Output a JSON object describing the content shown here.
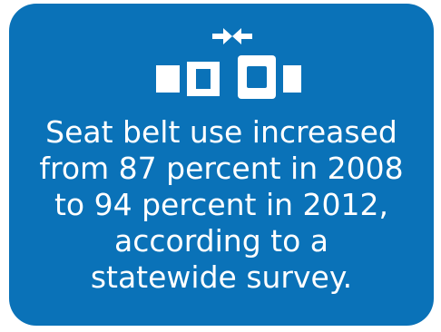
{
  "card": {
    "background_color": "#0a72b8",
    "text_color": "#ffffff",
    "icon": "seat-belt-buckle-icon",
    "message": "Seat belt use increased\nfrom 87 percent in 2008\nto 94 percent in 2012,\naccording to a\nstatewide survey."
  }
}
